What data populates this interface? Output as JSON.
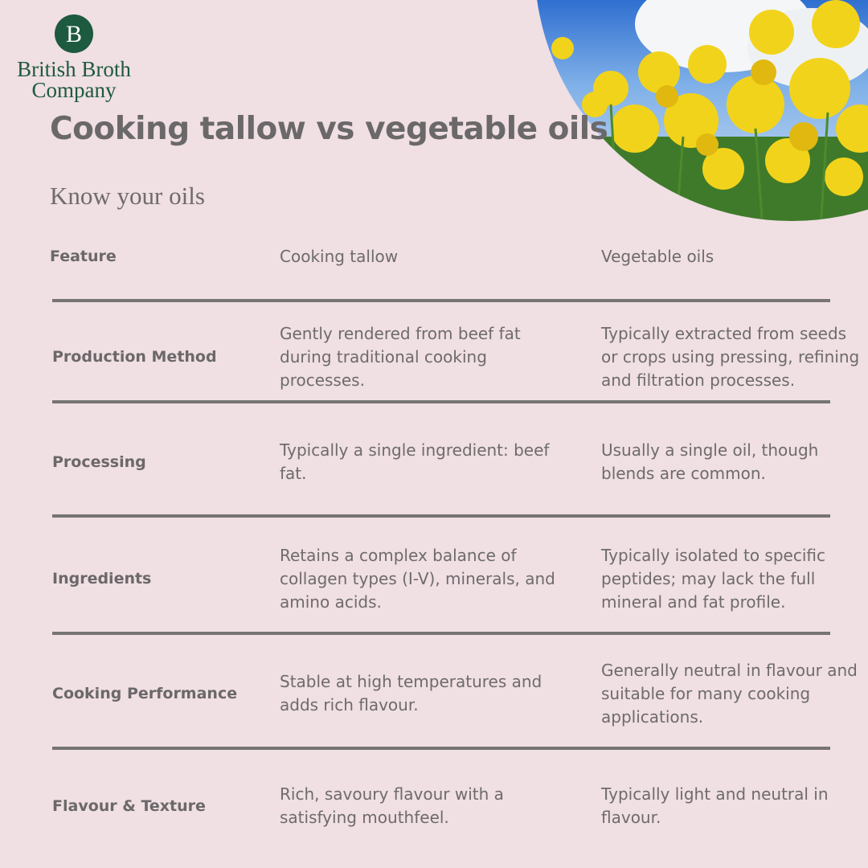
{
  "logo": {
    "mark": "B",
    "name_lines": [
      "British Broth",
      "Company"
    ]
  },
  "header": {
    "title": "Cooking tallow vs vegetable oils",
    "subtitle": "Know your oils"
  },
  "table": {
    "columns": [
      "Feature",
      "Cooking tallow",
      "Vegetable oils"
    ],
    "rows": [
      [
        "Production Method",
        "Gently rendered from beef fat during traditional cooking processes.",
        "Typically extracted from seeds or crops using pressing, refining and filtration processes."
      ],
      [
        "Processing",
        "Typically a single ingredient: beef fat.",
        "Usually a single oil, though blends are common."
      ],
      [
        "Ingredients",
        "Retains a complex balance of collagen types (I-V), minerals, and amino acids.",
        "Typically isolated to specific peptides; may lack the full mineral and fat profile."
      ],
      [
        "Cooking Performance",
        "Stable at high temperatures and adds rich flavour.",
        "Generally neutral in flavour and suitable for many cooking applications."
      ],
      [
        "Flavour & Texture",
        "Rich, savoury flavour with a satisfying mouthfeel.",
        "Typically light and neutral in flavour."
      ]
    ]
  }
}
